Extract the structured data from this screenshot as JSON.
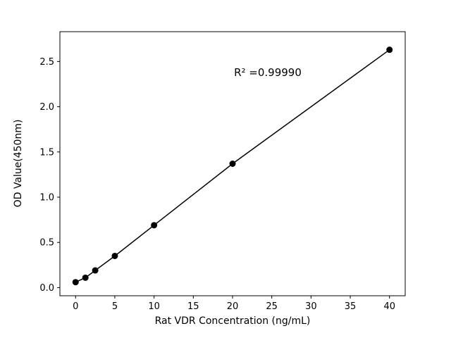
{
  "chart_data": {
    "type": "scatter",
    "title": "",
    "xlabel": "Rat VDR Concentration (ng/mL)",
    "ylabel": "OD Value(450nm)",
    "annotation": "R² =0.99990",
    "x": [
      0,
      1.25,
      2.5,
      5,
      10,
      20,
      40
    ],
    "y": [
      0.06,
      0.11,
      0.19,
      0.35,
      0.69,
      1.37,
      2.63
    ],
    "line_through_points": true,
    "xticks": [
      0,
      5,
      10,
      15,
      20,
      25,
      30,
      35,
      40
    ],
    "yticks": [
      0.0,
      0.5,
      1.0,
      1.5,
      2.0,
      2.5
    ],
    "xlim": [
      -2,
      42
    ],
    "ylim": [
      -0.09,
      2.83
    ],
    "grid": false,
    "legend": false,
    "marker_color": "#000000",
    "line_color": "#000000",
    "background_color": "#ffffff"
  }
}
